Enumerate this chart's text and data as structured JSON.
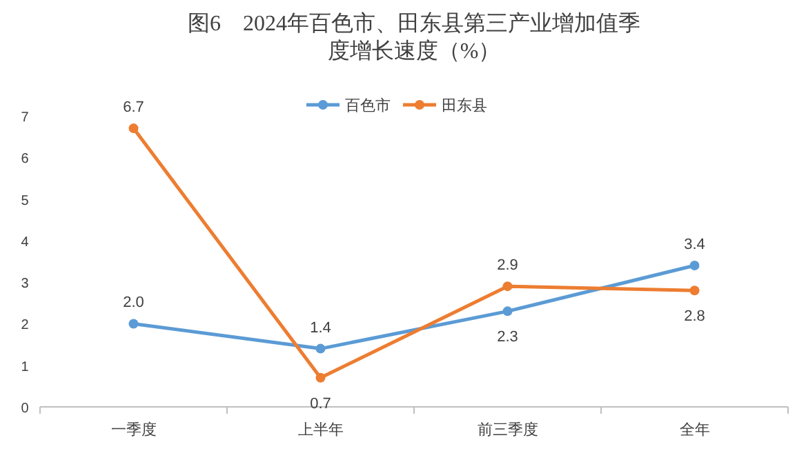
{
  "chart_data": {
    "type": "line",
    "title": "图6　2024年百色市、田东县第三产业增加值季度增长速度（%）",
    "categories": [
      "一季度",
      "上半年",
      "前三季度",
      "全年"
    ],
    "series": [
      {
        "name": "百色市",
        "color": "#5b9bd5",
        "values": [
          2.0,
          1.4,
          2.3,
          3.4
        ],
        "value_labels": [
          "2.0",
          "1.4",
          "2.3",
          "3.4"
        ]
      },
      {
        "name": "田东县",
        "color": "#ed7d31",
        "values": [
          6.7,
          0.7,
          2.9,
          2.8
        ],
        "value_labels": [
          "6.7",
          "0.7",
          "2.9",
          "2.8"
        ]
      }
    ],
    "ylim": [
      0,
      7
    ],
    "yticks": [
      0,
      1,
      2,
      3,
      4,
      5,
      6,
      7
    ],
    "grid": false,
    "legend": "top",
    "marker": "circle",
    "line_style": "solid"
  }
}
